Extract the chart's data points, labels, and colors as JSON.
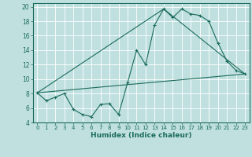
{
  "xlabel": "Humidex (Indice chaleur)",
  "xlim": [
    -0.5,
    23.5
  ],
  "ylim": [
    4,
    20.5
  ],
  "xticks": [
    0,
    1,
    2,
    3,
    4,
    5,
    6,
    7,
    8,
    9,
    10,
    11,
    12,
    13,
    14,
    15,
    16,
    17,
    18,
    19,
    20,
    21,
    22,
    23
  ],
  "yticks": [
    4,
    6,
    8,
    10,
    12,
    14,
    16,
    18,
    20
  ],
  "bg_color": "#c0e0e0",
  "line_color": "#1a6b5a",
  "grid_color": "#b0d0d0",
  "series1_x": [
    0,
    1,
    2,
    3,
    4,
    5,
    6,
    7,
    8,
    9,
    10,
    11,
    12,
    13,
    14,
    15,
    16,
    17,
    18,
    19,
    20,
    21,
    22,
    23
  ],
  "series1_y": [
    8.1,
    7.0,
    7.5,
    8.0,
    5.8,
    5.1,
    4.8,
    6.5,
    6.6,
    5.1,
    9.5,
    14.0,
    12.0,
    17.5,
    19.7,
    18.5,
    19.7,
    19.0,
    18.8,
    18.0,
    15.0,
    12.5,
    11.2,
    10.7
  ],
  "series2_x": [
    0,
    23
  ],
  "series2_y": [
    8.1,
    10.7
  ],
  "series3_x": [
    0,
    14,
    23
  ],
  "series3_y": [
    8.1,
    19.7,
    10.7
  ]
}
